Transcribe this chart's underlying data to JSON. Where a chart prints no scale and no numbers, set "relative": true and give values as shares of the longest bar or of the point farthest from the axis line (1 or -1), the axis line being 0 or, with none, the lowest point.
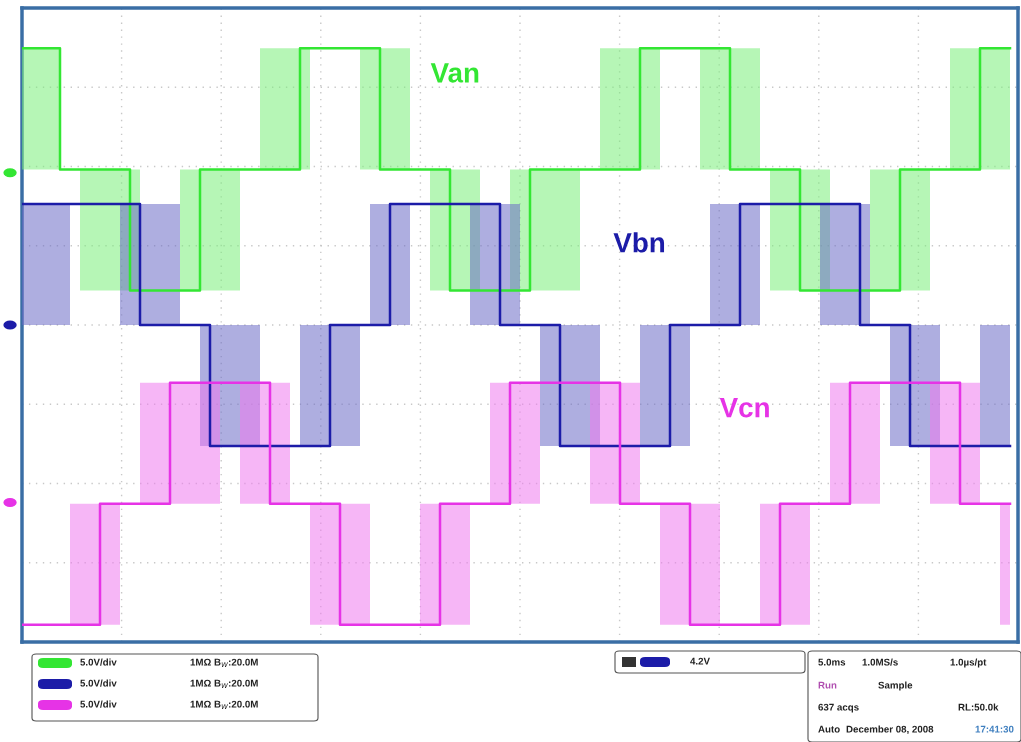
{
  "chart_data": {
    "type": "step",
    "relative": true,
    "grid": true,
    "legend": false,
    "tick_labels": false,
    "categories": [
      null,
      null,
      null,
      null,
      null,
      null,
      null,
      null,
      null,
      null,
      null,
      null,
      null,
      null,
      null,
      null,
      null,
      null,
      null,
      null,
      null,
      null,
      null,
      null,
      null,
      null,
      null,
      null,
      null,
      null,
      null,
      null,
      null,
      null,
      null,
      null,
      null,
      null,
      null,
      null,
      null,
      null,
      null,
      null,
      null,
      null,
      null,
      null,
      null,
      null,
      null,
      null,
      null,
      null,
      null,
      null,
      null,
      null,
      null,
      null,
      null,
      null,
      null,
      null,
      null,
      null,
      null,
      null,
      null,
      null,
      null,
      null,
      null,
      null,
      null,
      null,
      null,
      null,
      null,
      null,
      null,
      null,
      null,
      null,
      null,
      null,
      null,
      null,
      null,
      null,
      null,
      null,
      null,
      null,
      null,
      null,
      null,
      null,
      null,
      null
    ],
    "series": [
      {
        "name": "Van",
        "color": "#33e633",
        "values": [
          1,
          1,
          1,
          1,
          0.79,
          0.79,
          0.79,
          0.79,
          0.79,
          0.79,
          0.79,
          0.58,
          0.58,
          0.58,
          0.58,
          0.58,
          0.58,
          0.58,
          0.79,
          0.79,
          0.79,
          0.79,
          0.79,
          0.79,
          0.79,
          0.79,
          0.79,
          0.79,
          1,
          1,
          1,
          1,
          1,
          1,
          1,
          1,
          0.79,
          0.79,
          0.79,
          0.79,
          0.79,
          0.79,
          0.79,
          0.58,
          0.58,
          0.58,
          0.58,
          0.58,
          0.58,
          0.58,
          0.58,
          0.79,
          0.79,
          0.79,
          0.79,
          0.79,
          0.79,
          0.79,
          0.79,
          0.79,
          0.79,
          0.79,
          1,
          1,
          1,
          1,
          1,
          1,
          1,
          1,
          1,
          0.79,
          0.79,
          0.79,
          0.79,
          0.79,
          0.79,
          0.79,
          0.58,
          0.58,
          0.58,
          0.58,
          0.58,
          0.58,
          0.58,
          0.58,
          0.58,
          0.58,
          0.79,
          0.79,
          0.79,
          0.79,
          0.79,
          0.79,
          0.79,
          0.79,
          1,
          1,
          1,
          1
        ],
        "lower": [
          0.79,
          0.79,
          0.79,
          0.79,
          null,
          null,
          0.58,
          0.58,
          0.58,
          0.58,
          0.58,
          0.58,
          null,
          null,
          null,
          null,
          0.58,
          0.58,
          0.58,
          0.58,
          0.58,
          0.58,
          null,
          null,
          0.79,
          0.79,
          0.79,
          0.79,
          0.79,
          null,
          null,
          null,
          null,
          null,
          0.79,
          0.79,
          0.79,
          0.79,
          0.79,
          null,
          null,
          0.58,
          0.58,
          0.58,
          0.58,
          0.58,
          null,
          null,
          null,
          0.58,
          0.58,
          0.58,
          0.58,
          0.58,
          0.58,
          0.58,
          null,
          null,
          0.79,
          0.79,
          0.79,
          0.79,
          0.79,
          0.79,
          null,
          null,
          null,
          null,
          0.79,
          0.79,
          0.79,
          0.79,
          0.79,
          0.79,
          null,
          0.58,
          0.58,
          0.58,
          0.58,
          0.58,
          0.58,
          null,
          null,
          null,
          null,
          0.58,
          0.58,
          0.58,
          0.58,
          0.58,
          0.58,
          null,
          null,
          0.79,
          0.79,
          0.79,
          0.79,
          0.79,
          0.79,
          0.79
        ],
        "upper": [
          1,
          1,
          1,
          1,
          null,
          null,
          0.79,
          0.79,
          0.79,
          0.79,
          0.79,
          0.79,
          null,
          null,
          null,
          null,
          0.79,
          0.79,
          0.79,
          0.79,
          0.79,
          0.79,
          null,
          null,
          1,
          1,
          1,
          1,
          1,
          null,
          null,
          null,
          null,
          null,
          1,
          1,
          1,
          1,
          1,
          null,
          null,
          0.79,
          0.79,
          0.79,
          0.79,
          0.79,
          null,
          null,
          null,
          0.79,
          0.79,
          0.79,
          0.79,
          0.79,
          0.79,
          0.79,
          null,
          null,
          1,
          1,
          1,
          1,
          1,
          1,
          null,
          null,
          null,
          null,
          1,
          1,
          1,
          1,
          1,
          1,
          null,
          0.79,
          0.79,
          0.79,
          0.79,
          0.79,
          0.79,
          null,
          null,
          null,
          null,
          0.79,
          0.79,
          0.79,
          0.79,
          0.79,
          0.79,
          null,
          null,
          1,
          1,
          1,
          1,
          1,
          1,
          1
        ]
      },
      {
        "name": "Vbn",
        "color": "#1c1ca8",
        "values": [
          0.73,
          0.73,
          0.73,
          0.73,
          0.73,
          0.73,
          0.73,
          0.73,
          0.73,
          0.73,
          0.73,
          0.73,
          0.52,
          0.52,
          0.52,
          0.52,
          0.52,
          0.52,
          0.52,
          0.31,
          0.31,
          0.31,
          0.31,
          0.31,
          0.31,
          0.31,
          0.31,
          0.31,
          0.31,
          0.31,
          0.31,
          0.52,
          0.52,
          0.52,
          0.52,
          0.52,
          0.52,
          0.73,
          0.73,
          0.73,
          0.73,
          0.73,
          0.73,
          0.73,
          0.73,
          0.73,
          0.73,
          0.73,
          0.52,
          0.52,
          0.52,
          0.52,
          0.52,
          0.52,
          0.31,
          0.31,
          0.31,
          0.31,
          0.31,
          0.31,
          0.31,
          0.31,
          0.31,
          0.31,
          0.31,
          0.52,
          0.52,
          0.52,
          0.52,
          0.52,
          0.52,
          0.52,
          0.73,
          0.73,
          0.73,
          0.73,
          0.73,
          0.73,
          0.73,
          0.73,
          0.73,
          0.73,
          0.73,
          0.73,
          0.52,
          0.52,
          0.52,
          0.52,
          0.52,
          0.31,
          0.31,
          0.31,
          0.31,
          0.31,
          0.31,
          0.31,
          0.31,
          0.31,
          0.31,
          0.31
        ],
        "lower": [
          0.52,
          0.52,
          0.52,
          0.52,
          0.52,
          null,
          null,
          null,
          null,
          null,
          0.52,
          0.52,
          0.52,
          0.52,
          0.52,
          0.52,
          null,
          null,
          0.31,
          0.31,
          0.31,
          0.31,
          0.31,
          0.31,
          null,
          null,
          null,
          null,
          0.31,
          0.31,
          0.31,
          0.31,
          0.31,
          0.31,
          null,
          0.52,
          0.52,
          0.52,
          0.52,
          null,
          null,
          null,
          null,
          null,
          null,
          0.52,
          0.52,
          0.52,
          0.52,
          0.52,
          null,
          null,
          0.31,
          0.31,
          0.31,
          0.31,
          0.31,
          0.31,
          null,
          null,
          null,
          null,
          0.31,
          0.31,
          0.31,
          0.31,
          0.31,
          null,
          null,
          0.52,
          0.52,
          0.52,
          0.52,
          0.52,
          null,
          null,
          null,
          null,
          null,
          null,
          0.52,
          0.52,
          0.52,
          0.52,
          0.52,
          null,
          null,
          0.31,
          0.31,
          0.31,
          0.31,
          0.31,
          null,
          null,
          null,
          null,
          0.31,
          0.31,
          0.31,
          0.31
        ],
        "upper": [
          0.73,
          0.73,
          0.73,
          0.73,
          0.73,
          null,
          null,
          null,
          null,
          null,
          0.73,
          0.73,
          0.73,
          0.73,
          0.73,
          0.73,
          null,
          null,
          0.52,
          0.52,
          0.52,
          0.52,
          0.52,
          0.52,
          null,
          null,
          null,
          null,
          0.52,
          0.52,
          0.52,
          0.52,
          0.52,
          0.52,
          null,
          0.73,
          0.73,
          0.73,
          0.73,
          null,
          null,
          null,
          null,
          null,
          null,
          0.73,
          0.73,
          0.73,
          0.73,
          0.73,
          null,
          null,
          0.52,
          0.52,
          0.52,
          0.52,
          0.52,
          0.52,
          null,
          null,
          null,
          null,
          0.52,
          0.52,
          0.52,
          0.52,
          0.52,
          null,
          null,
          0.73,
          0.73,
          0.73,
          0.73,
          0.73,
          null,
          null,
          null,
          null,
          null,
          null,
          0.73,
          0.73,
          0.73,
          0.73,
          0.73,
          null,
          null,
          0.52,
          0.52,
          0.52,
          0.52,
          0.52,
          null,
          null,
          null,
          null,
          0.52,
          0.52,
          0.52,
          0.52
        ]
      },
      {
        "name": "Vcn",
        "color": "#e633e6",
        "values": [
          0,
          0,
          0,
          0,
          0,
          0,
          0,
          0,
          0.21,
          0.21,
          0.21,
          0.21,
          0.21,
          0.21,
          0.21,
          0.42,
          0.42,
          0.42,
          0.42,
          0.42,
          0.42,
          0.42,
          0.42,
          0.42,
          0.42,
          0.21,
          0.21,
          0.21,
          0.21,
          0.21,
          0.21,
          0.21,
          0,
          0,
          0,
          0,
          0,
          0,
          0,
          0,
          0,
          0,
          0.21,
          0.21,
          0.21,
          0.21,
          0.21,
          0.21,
          0.21,
          0.42,
          0.42,
          0.42,
          0.42,
          0.42,
          0.42,
          0.42,
          0.42,
          0.42,
          0.42,
          0.42,
          0.21,
          0.21,
          0.21,
          0.21,
          0.21,
          0.21,
          0.21,
          0,
          0,
          0,
          0,
          0,
          0,
          0,
          0,
          0,
          0.21,
          0.21,
          0.21,
          0.21,
          0.21,
          0.21,
          0.21,
          0.42,
          0.42,
          0.42,
          0.42,
          0.42,
          0.42,
          0.42,
          0.42,
          0.42,
          0.42,
          0.42,
          0.21,
          0.21,
          0.21,
          0.21,
          0.21,
          0.21
        ],
        "lower": [
          null,
          null,
          null,
          null,
          null,
          0,
          0,
          0,
          0,
          0,
          null,
          null,
          0.21,
          0.21,
          0.21,
          0.21,
          0.21,
          0.21,
          0.21,
          0.21,
          null,
          null,
          0.21,
          0.21,
          0.21,
          0.21,
          0.21,
          null,
          null,
          0,
          0,
          0,
          0,
          0,
          0,
          null,
          null,
          null,
          null,
          null,
          0,
          0,
          0,
          0,
          0,
          null,
          null,
          0.21,
          0.21,
          0.21,
          0.21,
          0.21,
          null,
          null,
          null,
          null,
          null,
          0.21,
          0.21,
          0.21,
          0.21,
          0.21,
          null,
          null,
          0,
          0,
          0,
          0,
          0,
          0,
          null,
          null,
          null,
          null,
          0,
          0,
          0,
          0,
          0,
          null,
          null,
          0.21,
          0.21,
          0.21,
          0.21,
          0.21,
          null,
          null,
          null,
          null,
          null,
          0.21,
          0.21,
          0.21,
          0.21,
          0.21,
          null,
          null,
          0,
          0
        ],
        "upper": [
          null,
          null,
          null,
          null,
          null,
          0.21,
          0.21,
          0.21,
          0.21,
          0.21,
          null,
          null,
          0.42,
          0.42,
          0.42,
          0.42,
          0.42,
          0.42,
          0.42,
          0.42,
          null,
          null,
          0.42,
          0.42,
          0.42,
          0.42,
          0.42,
          null,
          null,
          0.21,
          0.21,
          0.21,
          0.21,
          0.21,
          0.21,
          null,
          null,
          null,
          null,
          null,
          0.21,
          0.21,
          0.21,
          0.21,
          0.21,
          null,
          null,
          0.42,
          0.42,
          0.42,
          0.42,
          0.42,
          null,
          null,
          null,
          null,
          null,
          0.42,
          0.42,
          0.42,
          0.42,
          0.42,
          null,
          null,
          0.21,
          0.21,
          0.21,
          0.21,
          0.21,
          0.21,
          null,
          null,
          null,
          null,
          0.21,
          0.21,
          0.21,
          0.21,
          0.21,
          null,
          null,
          0.42,
          0.42,
          0.42,
          0.42,
          0.42,
          null,
          null,
          null,
          null,
          null,
          0.42,
          0.42,
          0.42,
          0.42,
          0.42,
          null,
          null,
          0.21,
          0.21
        ]
      }
    ],
    "annotations": [
      "5.0V/div",
      "1MΩ B$_{W}$:20.0M",
      "5.0V/div",
      "1MΩ B$_{W}$:20.0M",
      "5.0V/div",
      "1MΩ B$_{W}$:20.0M",
      "4.2V",
      "5.0ms",
      "1.0MS/s",
      "1.0µs/pt",
      "Run",
      "Sample",
      "637 acqs",
      "RL:50.0k",
      "Auto",
      "December 08, 2008",
      "17:41:30"
    ]
  }
}
